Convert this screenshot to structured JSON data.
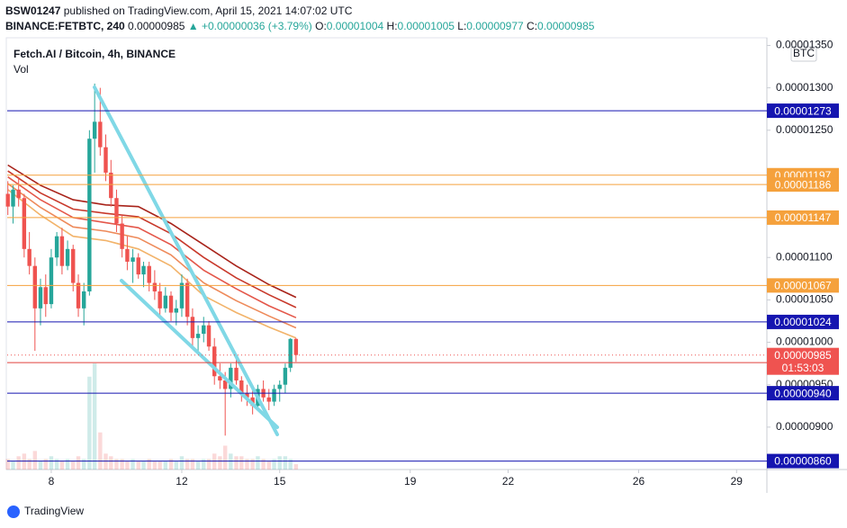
{
  "header": {
    "author": "BSW01247",
    "published": "published on TradingView.com, April 15, 2021 14:07:02 UTC",
    "symbol": "BINANCE:FETBTC, 240",
    "price": "0.00000985",
    "change": "▲ +0.00000036 (+3.79%)",
    "o_label": "O:",
    "o_value": "0.00001004",
    "h_label": "H:",
    "h_value": "0.00001005",
    "l_label": "L:",
    "l_value": "0.00000977",
    "c_label": "C:",
    "c_value": "0.00000985"
  },
  "legend": {
    "name": "Fetch.AI / Bitcoin, 4h, BINANCE",
    "volume": "Vol"
  },
  "currency": "BTC",
  "countdown": "01:53:03",
  "footer": "TradingView",
  "chart_data": {
    "type": "candlestick",
    "up_color": "#26a69a",
    "down_color": "#ef5350",
    "x": [
      6.67,
      6.83,
      7,
      7.17,
      7.33,
      7.5,
      7.67,
      7.83,
      8,
      8.17,
      8.33,
      8.5,
      8.67,
      8.83,
      9,
      9.17,
      9.33,
      9.5,
      9.67,
      9.83,
      10,
      10.17,
      10.33,
      10.5,
      10.67,
      10.83,
      11,
      11.17,
      11.33,
      11.5,
      11.67,
      11.83,
      12,
      12.17,
      12.33,
      12.5,
      12.67,
      12.83,
      13,
      13.17,
      13.33,
      13.5,
      13.67,
      13.83,
      14,
      14.17,
      14.33,
      14.5,
      14.67,
      14.83,
      15,
      15.17,
      15.33,
      15.5
    ],
    "open": [
      1.175e-05,
      1.16e-05,
      1.18e-05,
      1.17e-05,
      1.11e-05,
      1.09e-05,
      1.04e-05,
      1.065e-05,
      1.045e-05,
      1.1e-05,
      1.125e-05,
      1.09e-05,
      1.11e-05,
      1.07e-05,
      1.04e-05,
      1.06e-05,
      1.24e-05,
      1.26e-05,
      1.23e-05,
      1.2e-05,
      1.17e-05,
      1.14e-05,
      1.11e-05,
      1.095e-05,
      1.1e-05,
      1.08e-05,
      1.09e-05,
      1.07e-05,
      1.06e-05,
      1.04e-05,
      1.055e-05,
      1.035e-05,
      1.04e-05,
      1.07e-05,
      1.03e-05,
      1.005e-05,
      1.01e-05,
      1.02e-05,
      9.95e-06,
      9.6e-06,
      9.55e-06,
      9.45e-06,
      9.7e-06,
      9.55e-06,
      9.4e-06,
      9.35e-06,
      9.25e-06,
      9.45e-06,
      9.35e-06,
      9.3e-06,
      9.45e-06,
      9.5e-06,
      9.7e-06,
      1.004e-05
    ],
    "high": [
      1.19e-05,
      1.185e-05,
      1.195e-05,
      1.175e-05,
      1.13e-05,
      1.1e-05,
      1.075e-05,
      1.08e-05,
      1.11e-05,
      1.13e-05,
      1.135e-05,
      1.12e-05,
      1.115e-05,
      1.08e-05,
      1.07e-05,
      1.25e-05,
      1.305e-05,
      1.3e-05,
      1.245e-05,
      1.215e-05,
      1.18e-05,
      1.15e-05,
      1.125e-05,
      1.11e-05,
      1.105e-05,
      1.095e-05,
      1.095e-05,
      1.085e-05,
      1.07e-05,
      1.065e-05,
      1.06e-05,
      1.05e-05,
      1.08e-05,
      1.075e-05,
      1.04e-05,
      1.02e-05,
      1.03e-05,
      1.025e-05,
      1.005e-05,
      9.75e-06,
      9.65e-06,
      9.75e-06,
      9.85e-06,
      9.6e-06,
      9.5e-06,
      9.45e-06,
      9.5e-06,
      9.55e-06,
      9.45e-06,
      9.5e-06,
      9.55e-06,
      9.75e-06,
      1.005e-05,
      1.005e-05
    ],
    "low": [
      1.15e-05,
      1.14e-05,
      1.16e-05,
      1.1e-05,
      1.08e-05,
      9.9e-06,
      1.02e-05,
      1.03e-05,
      1.04e-05,
      1.09e-05,
      1.08e-05,
      1.085e-05,
      1.06e-05,
      1.03e-05,
      1.02e-05,
      1.055e-05,
      1.2e-05,
      1.22e-05,
      1.19e-05,
      1.16e-05,
      1.13e-05,
      1.1e-05,
      1.085e-05,
      1.07e-05,
      1.075e-05,
      1.065e-05,
      1.06e-05,
      1.05e-05,
      1.03e-05,
      1.035e-05,
      1.025e-05,
      1.02e-05,
      1.03e-05,
      1.02e-05,
      9.95e-06,
      9.9e-06,
      1e-05,
      9.9e-06,
      9.5e-06,
      9.45e-06,
      8.9e-06,
      9.35e-06,
      9.5e-06,
      9.3e-06,
      9.25e-06,
      9.15e-06,
      9.2e-06,
      9.3e-06,
      9.2e-06,
      9.25e-06,
      9.3e-06,
      9.4e-06,
      9.65e-06,
      9.77e-06
    ],
    "close": [
      1.16e-05,
      1.18e-05,
      1.17e-05,
      1.11e-05,
      1.09e-05,
      1.04e-05,
      1.065e-05,
      1.045e-05,
      1.1e-05,
      1.125e-05,
      1.09e-05,
      1.11e-05,
      1.07e-05,
      1.04e-05,
      1.06e-05,
      1.24e-05,
      1.26e-05,
      1.23e-05,
      1.2e-05,
      1.17e-05,
      1.14e-05,
      1.11e-05,
      1.095e-05,
      1.1e-05,
      1.08e-05,
      1.09e-05,
      1.07e-05,
      1.06e-05,
      1.04e-05,
      1.055e-05,
      1.035e-05,
      1.04e-05,
      1.07e-05,
      1.03e-05,
      1.005e-05,
      1.01e-05,
      1.02e-05,
      9.95e-06,
      9.6e-06,
      9.55e-06,
      9.45e-06,
      9.7e-06,
      9.55e-06,
      9.4e-06,
      9.35e-06,
      9.25e-06,
      9.45e-06,
      9.35e-06,
      9.3e-06,
      9.45e-06,
      9.5e-06,
      9.7e-06,
      1.004e-05,
      9.85e-06
    ],
    "volume": [
      4,
      3,
      5,
      6,
      4,
      7,
      3,
      4,
      5,
      4,
      3,
      4,
      3,
      5,
      4,
      35,
      40,
      14,
      6,
      5,
      4,
      4,
      3,
      4,
      3,
      3,
      4,
      3,
      3,
      3,
      4,
      3,
      5,
      4,
      4,
      3,
      4,
      4,
      6,
      5,
      9,
      6,
      5,
      5,
      4,
      4,
      5,
      4,
      3,
      4,
      5,
      5,
      4,
      2
    ],
    "ribbons": [
      {
        "color": "#a8231a",
        "x": [
          6.67,
          7.67,
          8.67,
          9.67,
          10.67,
          11.67,
          12.67,
          13.67,
          14.67,
          15.5
        ],
        "values": [
          1.209e-05,
          1.185e-05,
          1.168e-05,
          1.162e-05,
          1.16e-05,
          1.14e-05,
          1.115e-05,
          1.09e-05,
          1.068e-05,
          1.053e-05
        ]
      },
      {
        "color": "#c8392b",
        "x": [
          6.67,
          7.67,
          8.67,
          9.67,
          10.67,
          11.67,
          12.67,
          13.67,
          14.67,
          15.5
        ],
        "values": [
          1.202e-05,
          1.176e-05,
          1.157e-05,
          1.152e-05,
          1.148e-05,
          1.128e-05,
          1.1e-05,
          1.076e-05,
          1.056e-05,
          1.041e-05
        ]
      },
      {
        "color": "#e4574a",
        "x": [
          6.67,
          7.67,
          8.67,
          9.67,
          10.67,
          11.67,
          12.67,
          13.67,
          14.67,
          15.5
        ],
        "values": [
          1.195e-05,
          1.168e-05,
          1.147e-05,
          1.141e-05,
          1.135e-05,
          1.115e-05,
          1.085e-05,
          1.063e-05,
          1.043e-05,
          1.029e-05
        ]
      },
      {
        "color": "#ee8a5a",
        "x": [
          6.67,
          7.67,
          8.67,
          9.67,
          10.67,
          11.67,
          12.67,
          13.67,
          14.67,
          15.5
        ],
        "values": [
          1.187e-05,
          1.159e-05,
          1.136e-05,
          1.131e-05,
          1.123e-05,
          1.103e-05,
          1.07e-05,
          1.049e-05,
          1.031e-05,
          1.017e-05
        ]
      },
      {
        "color": "#f2b36a",
        "x": [
          6.67,
          7.67,
          8.67,
          9.67,
          10.67,
          11.67,
          12.67,
          13.67,
          14.67,
          15.5
        ],
        "values": [
          1.18e-05,
          1.15e-05,
          1.125e-05,
          1.12e-05,
          1.11e-05,
          1.09e-05,
          1.055e-05,
          1.035e-05,
          1.018e-05,
          1.005e-05
        ]
      }
    ],
    "levels": [
      {
        "value": 1.273e-05,
        "label": "0.00001273",
        "color": "#1515b0"
      },
      {
        "value": 1.197e-05,
        "label": "0.00001197",
        "color": "#f5a13c"
      },
      {
        "value": 1.186e-05,
        "label": "0.00001186",
        "color": "#f5a13c"
      },
      {
        "value": 1.147e-05,
        "label": "0.00001147",
        "color": "#f5a13c"
      },
      {
        "value": 1.067e-05,
        "label": "0.00001067",
        "color": "#f5a13c"
      },
      {
        "value": 1.024e-05,
        "label": "0.00001024",
        "color": "#1515b0"
      },
      {
        "value": 9.76e-06,
        "color": "#e0403c"
      },
      {
        "value": 9.4e-06,
        "label": "0.00000940",
        "color": "#1515b0"
      },
      {
        "value": 8.6e-06,
        "label": "0.00000860",
        "color": "#1515b0"
      }
    ],
    "last_price": {
      "value": 9.85e-06,
      "label": "0.00000985",
      "color": "#ef5350"
    },
    "xlim": [
      6.65,
      29.93
    ],
    "xticks": [
      8,
      12,
      15,
      19,
      22,
      26,
      29
    ],
    "ylim": [
      8.5e-06,
      1.359e-05
    ],
    "yticks": [
      {
        "value": 9e-06,
        "label": "0.00000900"
      },
      {
        "value": 9.5e-06,
        "label": "0.00000950"
      },
      {
        "value": 1e-05,
        "label": "0.00001000"
      },
      {
        "value": 1.05e-05,
        "label": "0.00001050"
      },
      {
        "value": 1.1e-05,
        "label": "0.00001100"
      },
      {
        "value": 1.25e-05,
        "label": "0.00001250"
      },
      {
        "value": 1.3e-05,
        "label": "0.00001300"
      },
      {
        "value": 1.35e-05,
        "label": "0.00001350"
      }
    ]
  }
}
